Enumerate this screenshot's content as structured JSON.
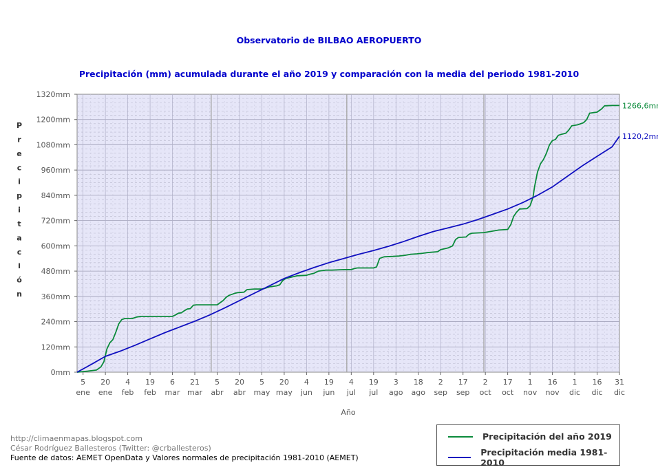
{
  "title": "Observatorio de BILBAO AEROPUERTO",
  "subtitle": "Precipitación (mm) acumulada durante el año 2019 y comparación con la media del periodo 1981-2010",
  "footer": {
    "line1": "http://climaenmapas.blogspot.com",
    "line2": "César Rodríguez Ballesteros (Twitter: @crballesteros)",
    "line3": "Fuente de datos: AEMET OpenData y Valores normales de precipitación 1981-2010 (AEMET)"
  },
  "colors": {
    "series_2019": "#0a8a3a",
    "series_media": "#1010c0",
    "plot_bg": "#e6e6f8"
  },
  "chart_data": {
    "type": "line",
    "xlabel": "Año",
    "ylabel": "Precipitación",
    "ylim": [
      0,
      1320
    ],
    "xlim": [
      1,
      365
    ],
    "yticks": [
      {
        "value": 0,
        "label": "0mm"
      },
      {
        "value": 120,
        "label": "120mm"
      },
      {
        "value": 240,
        "label": "240mm"
      },
      {
        "value": 360,
        "label": "360mm"
      },
      {
        "value": 480,
        "label": "480mm"
      },
      {
        "value": 600,
        "label": "600mm"
      },
      {
        "value": 720,
        "label": "720mm"
      },
      {
        "value": 840,
        "label": "840mm"
      },
      {
        "value": 960,
        "label": "960mm"
      },
      {
        "value": 1080,
        "label": "1080mm"
      },
      {
        "value": 1200,
        "label": "1200mm"
      },
      {
        "value": 1320,
        "label": "1320mm"
      }
    ],
    "xticks": [
      {
        "day": 5,
        "num": "5",
        "mon": "ene"
      },
      {
        "day": 20,
        "num": "20",
        "mon": "ene"
      },
      {
        "day": 35,
        "num": "4",
        "mon": "feb"
      },
      {
        "day": 50,
        "num": "19",
        "mon": "feb"
      },
      {
        "day": 65,
        "num": "6",
        "mon": "mar"
      },
      {
        "day": 80,
        "num": "21",
        "mon": "mar"
      },
      {
        "day": 95,
        "num": "5",
        "mon": "abr"
      },
      {
        "day": 110,
        "num": "20",
        "mon": "abr"
      },
      {
        "day": 125,
        "num": "5",
        "mon": "may"
      },
      {
        "day": 140,
        "num": "20",
        "mon": "may"
      },
      {
        "day": 155,
        "num": "4",
        "mon": "jun"
      },
      {
        "day": 170,
        "num": "19",
        "mon": "jun"
      },
      {
        "day": 185,
        "num": "4",
        "mon": "jul"
      },
      {
        "day": 200,
        "num": "19",
        "mon": "jul"
      },
      {
        "day": 215,
        "num": "3",
        "mon": "ago"
      },
      {
        "day": 230,
        "num": "18",
        "mon": "ago"
      },
      {
        "day": 245,
        "num": "2",
        "mon": "sep"
      },
      {
        "day": 260,
        "num": "17",
        "mon": "sep"
      },
      {
        "day": 275,
        "num": "2",
        "mon": "oct"
      },
      {
        "day": 290,
        "num": "17",
        "mon": "oct"
      },
      {
        "day": 305,
        "num": "1",
        "mon": "nov"
      },
      {
        "day": 320,
        "num": "16",
        "mon": "nov"
      },
      {
        "day": 335,
        "num": "1",
        "mon": "dic"
      },
      {
        "day": 350,
        "num": "16",
        "mon": "dic"
      },
      {
        "day": 365,
        "num": "31",
        "mon": "dic"
      }
    ],
    "series": [
      {
        "name": "Precipitación del año 2019",
        "end_label": "1266,6mm",
        "points": [
          [
            1,
            0
          ],
          [
            8,
            5
          ],
          [
            14,
            10
          ],
          [
            17,
            25
          ],
          [
            19,
            50
          ],
          [
            21,
            110
          ],
          [
            23,
            140
          ],
          [
            25,
            155
          ],
          [
            27,
            190
          ],
          [
            29,
            230
          ],
          [
            31,
            250
          ],
          [
            33,
            255
          ],
          [
            38,
            255
          ],
          [
            41,
            262
          ],
          [
            44,
            265
          ],
          [
            65,
            265
          ],
          [
            67,
            272
          ],
          [
            69,
            280
          ],
          [
            71,
            282
          ],
          [
            73,
            292
          ],
          [
            75,
            300
          ],
          [
            77,
            302
          ],
          [
            79,
            318
          ],
          [
            81,
            320
          ],
          [
            95,
            320
          ],
          [
            97,
            330
          ],
          [
            99,
            340
          ],
          [
            101,
            355
          ],
          [
            103,
            365
          ],
          [
            105,
            370
          ],
          [
            107,
            375
          ],
          [
            109,
            378
          ],
          [
            113,
            380
          ],
          [
            115,
            392
          ],
          [
            120,
            395
          ],
          [
            125,
            395
          ],
          [
            127,
            398
          ],
          [
            130,
            405
          ],
          [
            135,
            410
          ],
          [
            137,
            415
          ],
          [
            139,
            435
          ],
          [
            141,
            445
          ],
          [
            145,
            452
          ],
          [
            149,
            458
          ],
          [
            155,
            460
          ],
          [
            157,
            465
          ],
          [
            160,
            470
          ],
          [
            163,
            480
          ],
          [
            168,
            485
          ],
          [
            172,
            485
          ],
          [
            180,
            487
          ],
          [
            185,
            487
          ],
          [
            187,
            492
          ],
          [
            189,
            495
          ],
          [
            200,
            495
          ],
          [
            202,
            500
          ],
          [
            203,
            520
          ],
          [
            204,
            540
          ],
          [
            207,
            548
          ],
          [
            213,
            550
          ],
          [
            217,
            552
          ],
          [
            221,
            555
          ],
          [
            225,
            560
          ],
          [
            229,
            562
          ],
          [
            233,
            565
          ],
          [
            236,
            568
          ],
          [
            243,
            572
          ],
          [
            245,
            582
          ],
          [
            250,
            590
          ],
          [
            253,
            600
          ],
          [
            255,
            630
          ],
          [
            257,
            640
          ],
          [
            262,
            642
          ],
          [
            264,
            655
          ],
          [
            266,
            660
          ],
          [
            274,
            663
          ],
          [
            280,
            670
          ],
          [
            284,
            675
          ],
          [
            290,
            678
          ],
          [
            292,
            700
          ],
          [
            294,
            740
          ],
          [
            296,
            760
          ],
          [
            298,
            775
          ],
          [
            303,
            777
          ],
          [
            305,
            790
          ],
          [
            307,
            830
          ],
          [
            308,
            880
          ],
          [
            310,
            950
          ],
          [
            312,
            990
          ],
          [
            314,
            1010
          ],
          [
            316,
            1040
          ],
          [
            318,
            1080
          ],
          [
            320,
            1100
          ],
          [
            322,
            1105
          ],
          [
            324,
            1125
          ],
          [
            326,
            1130
          ],
          [
            329,
            1135
          ],
          [
            331,
            1150
          ],
          [
            333,
            1170
          ],
          [
            337,
            1175
          ],
          [
            341,
            1185
          ],
          [
            343,
            1200
          ],
          [
            345,
            1230
          ],
          [
            350,
            1235
          ],
          [
            353,
            1250
          ],
          [
            355,
            1265
          ],
          [
            360,
            1266.6
          ],
          [
            365,
            1266.6
          ]
        ]
      },
      {
        "name": "Precipitación media 1981-2010",
        "end_label": "1120,2mm",
        "points": [
          [
            1,
            0
          ],
          [
            10,
            35
          ],
          [
            20,
            75
          ],
          [
            30,
            100
          ],
          [
            40,
            128
          ],
          [
            50,
            158
          ],
          [
            60,
            188
          ],
          [
            70,
            215
          ],
          [
            80,
            242
          ],
          [
            90,
            272
          ],
          [
            100,
            305
          ],
          [
            110,
            340
          ],
          [
            120,
            375
          ],
          [
            130,
            410
          ],
          [
            140,
            445
          ],
          [
            150,
            472
          ],
          [
            160,
            497
          ],
          [
            170,
            520
          ],
          [
            180,
            540
          ],
          [
            190,
            560
          ],
          [
            200,
            578
          ],
          [
            210,
            598
          ],
          [
            220,
            620
          ],
          [
            230,
            645
          ],
          [
            240,
            668
          ],
          [
            250,
            685
          ],
          [
            260,
            703
          ],
          [
            270,
            725
          ],
          [
            280,
            750
          ],
          [
            290,
            775
          ],
          [
            300,
            805
          ],
          [
            310,
            840
          ],
          [
            320,
            880
          ],
          [
            330,
            930
          ],
          [
            340,
            980
          ],
          [
            350,
            1025
          ],
          [
            360,
            1070
          ],
          [
            365,
            1120.2
          ]
        ]
      }
    ],
    "legend_position": "bottom-right"
  }
}
